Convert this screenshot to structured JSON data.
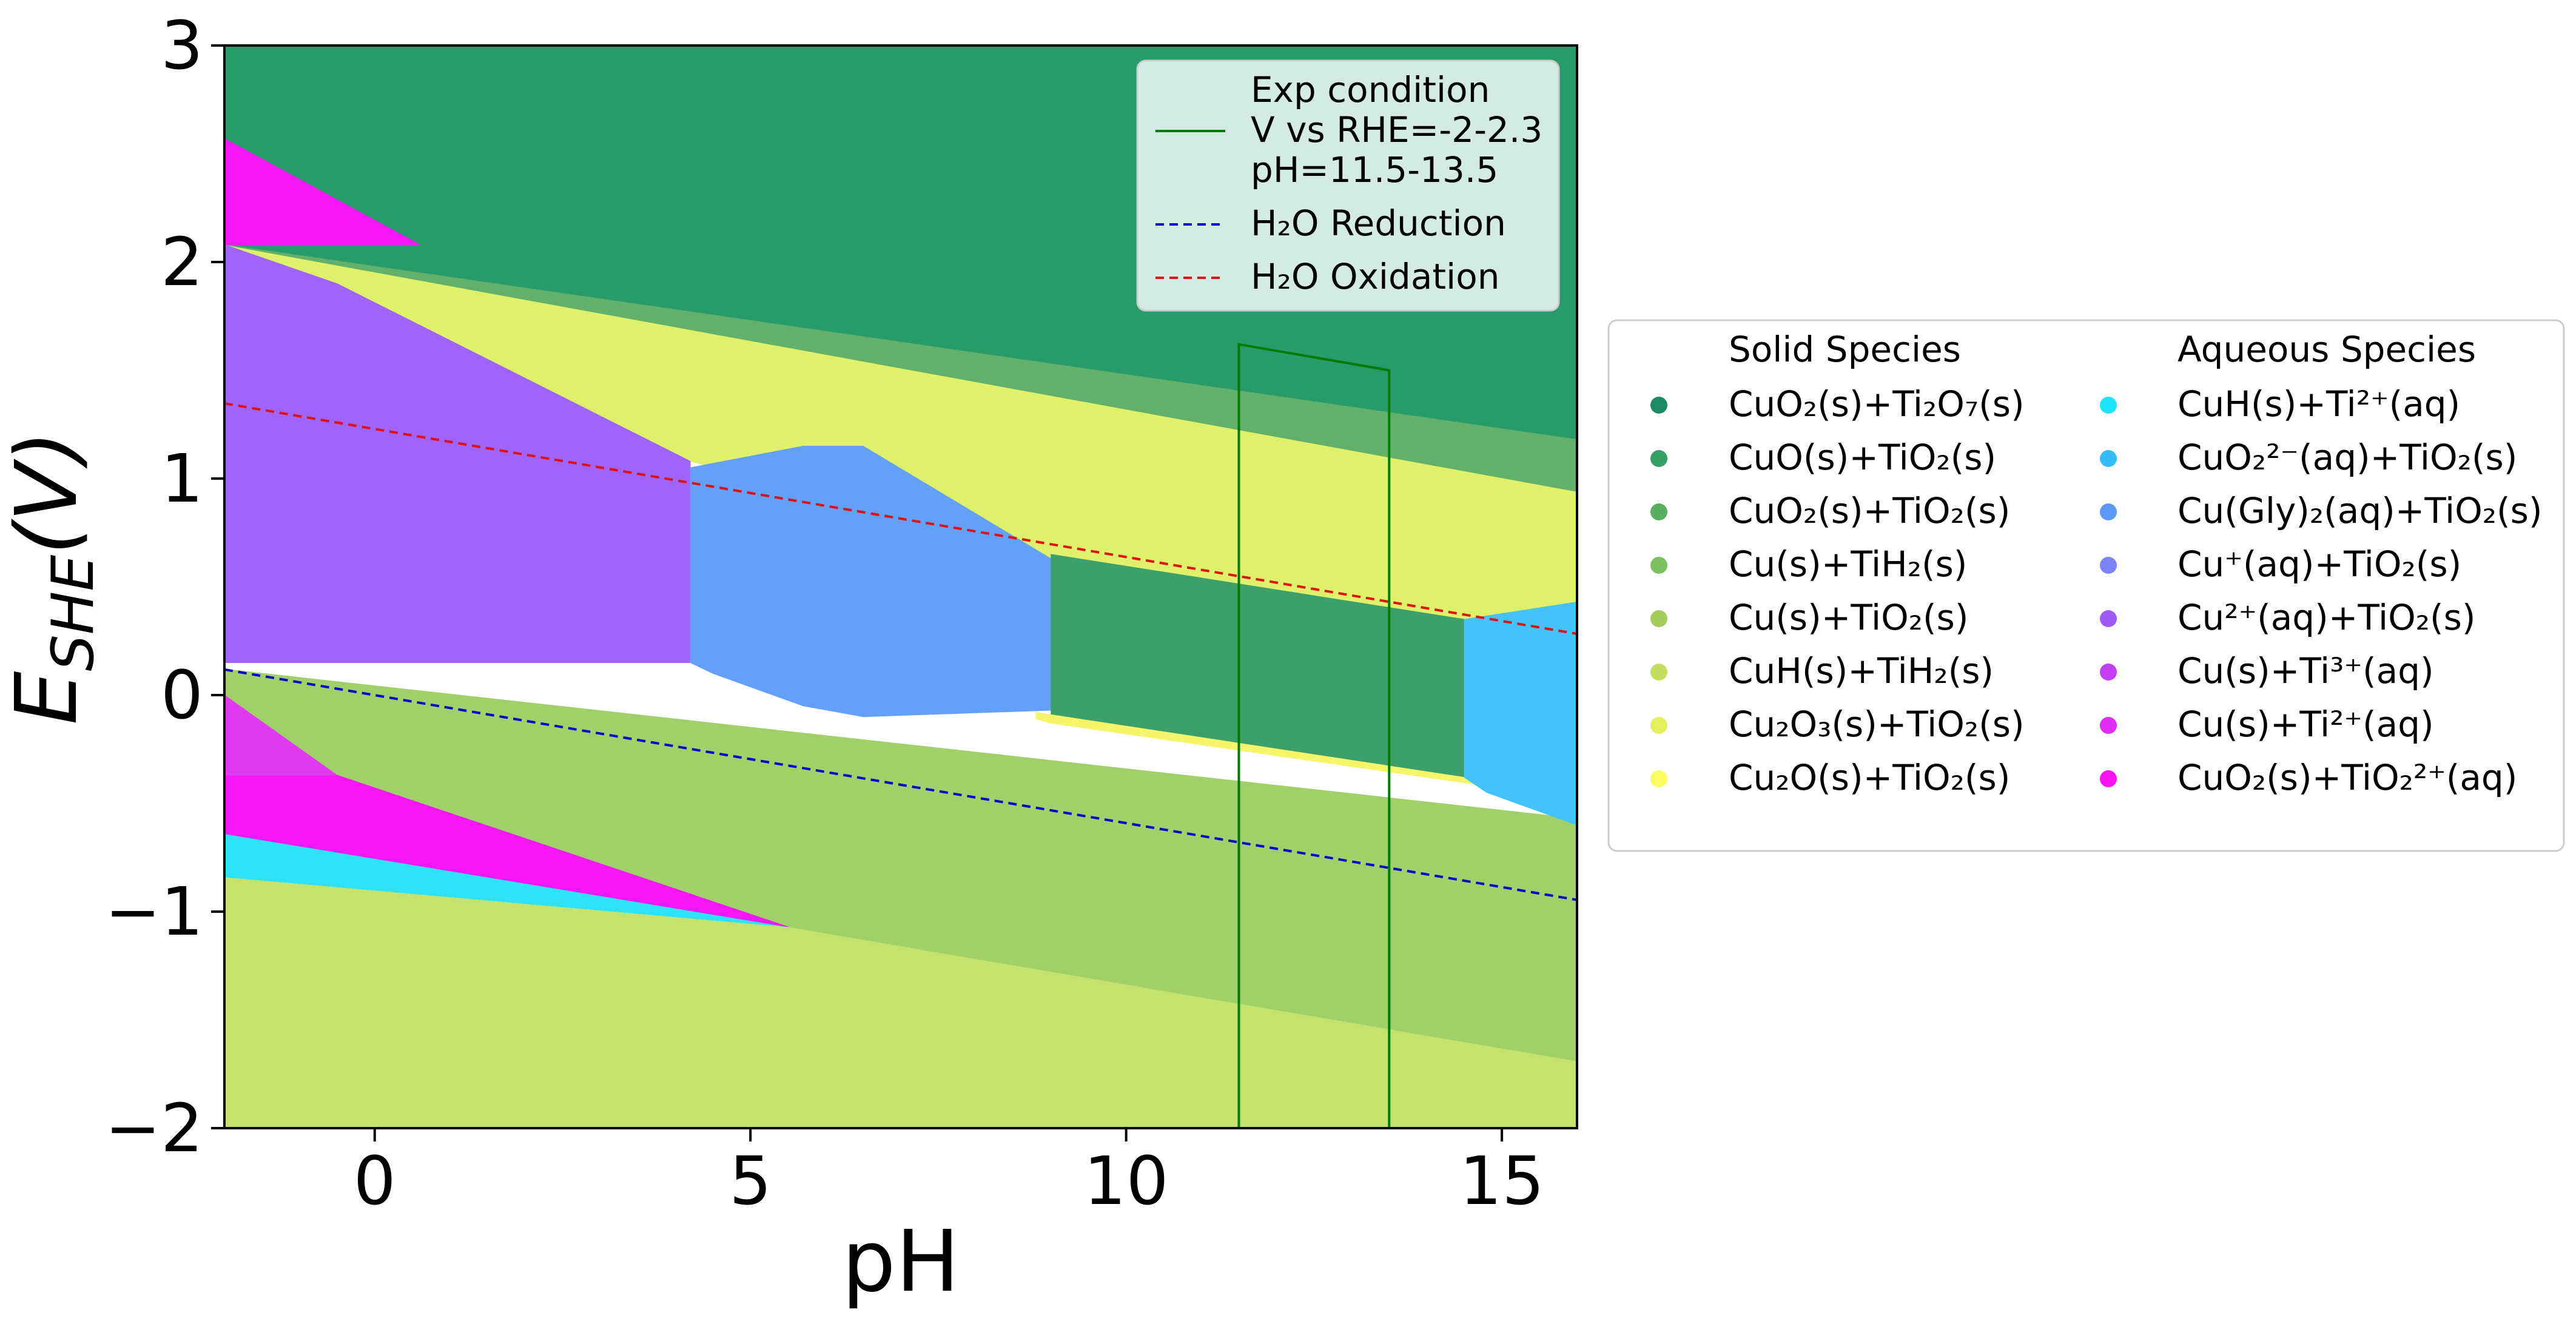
{
  "chart_data": {
    "type": "area",
    "title": "",
    "xlabel": "pH",
    "ylabel_main": "E",
    "ylabel_sub": "SHE",
    "ylabel_tail": "(V)",
    "xlim": [
      -2,
      16
    ],
    "ylim": [
      -2,
      3
    ],
    "x_ticks": [
      {
        "v": 0,
        "label": "0"
      },
      {
        "v": 5,
        "label": "5"
      },
      {
        "v": 10,
        "label": "10"
      },
      {
        "v": 15,
        "label": "15"
      }
    ],
    "y_ticks": [
      {
        "v": -2,
        "label": "−2"
      },
      {
        "v": -1,
        "label": "−1"
      },
      {
        "v": 0,
        "label": "0"
      },
      {
        "v": 1,
        "label": "1"
      },
      {
        "v": 2,
        "label": "2"
      },
      {
        "v": 3,
        "label": "3"
      }
    ],
    "grid": false,
    "regions": [
      {
        "name": "CuH(s)+TiH2(s)",
        "color": "#c5e26d",
        "points": [
          [
            -2,
            -2
          ],
          [
            16,
            -2
          ],
          [
            16,
            -1.69
          ],
          [
            5.5,
            -1.07
          ],
          [
            -2,
            -0.84
          ]
        ]
      },
      {
        "name": "Cu(s)+TiO2(s)",
        "color": "#a0d06a",
        "points": [
          [
            -2,
            0.12
          ],
          [
            16,
            -0.57
          ],
          [
            16,
            -1.69
          ],
          [
            5.5,
            -1.07
          ],
          [
            -0.5,
            -0.37
          ],
          [
            -2,
            -0.37
          ]
        ]
      },
      {
        "name": "CuH(s)+Ti2+(aq)",
        "color": "#2ee2fa",
        "points": [
          [
            -2,
            -0.64
          ],
          [
            5.5,
            -1.07
          ],
          [
            -2,
            -0.84
          ]
        ]
      },
      {
        "name": "Cu(s)+Ti2+(aq)",
        "color": "#f516f5",
        "points": [
          [
            -2,
            -0.37
          ],
          [
            -0.5,
            -0.37
          ],
          [
            5.5,
            -1.07
          ],
          [
            -2,
            -0.64
          ]
        ]
      },
      {
        "name": "Cu(s)+Ti3+(aq)",
        "color": "#e03af0",
        "points": [
          [
            -2,
            0
          ],
          [
            -0.5,
            -0.37
          ],
          [
            -2,
            -0.37
          ]
        ]
      },
      {
        "name": "Cu2O3(s)+TiO2(s)",
        "color": "#dff06a",
        "points": [
          [
            -2,
            2.08
          ],
          [
            0.5,
            2.08
          ],
          [
            16,
            1.18
          ],
          [
            16,
            0.43
          ],
          [
            14.5,
            0.35
          ],
          [
            9,
            0.63
          ],
          [
            4.2,
            1.08
          ],
          [
            -2,
            2.08
          ]
        ]
      },
      {
        "name": "CuO(s)+TiO2(s)",
        "color": "#289b6b",
        "points": [
          [
            -2,
            3
          ],
          [
            16,
            3
          ],
          [
            16,
            1.18
          ],
          [
            -2,
            2.08
          ]
        ]
      },
      {
        "name": "CuO2(s)+TiO2(s)",
        "color": "#63b06b",
        "points": [
          [
            -2,
            2.08
          ],
          [
            16,
            1.18
          ],
          [
            16,
            0.94
          ],
          [
            -2,
            2.08
          ]
        ]
      },
      {
        "name": "CuO2(s)+TiO2 2+(aq)",
        "color": "#f516f5",
        "points": [
          [
            -2,
            2.57
          ],
          [
            0.6,
            2.08
          ],
          [
            -2,
            2.08
          ]
        ]
      },
      {
        "name": "Cu2+(aq)+TiO2(s)",
        "color": "#a064fa",
        "points": [
          [
            -2,
            2.08
          ],
          [
            -0.5,
            1.9
          ],
          [
            4.2,
            1.08
          ],
          [
            4.2,
            0.15
          ],
          [
            -2,
            0.15
          ]
        ]
      },
      {
        "name": "Cu(Gly)2(aq)+TiO2(s)",
        "color": "#64a0f8",
        "points": [
          [
            4.2,
            1.05
          ],
          [
            5.7,
            1.15
          ],
          [
            6.5,
            1.15
          ],
          [
            9,
            0.63
          ],
          [
            9,
            -0.07
          ],
          [
            6.5,
            -0.1
          ],
          [
            5.7,
            -0.05
          ],
          [
            4.5,
            0.1
          ],
          [
            4.2,
            0.15
          ]
        ]
      },
      {
        "name": "CuO(s)+TiO2(s) band",
        "color": "#3d9f6a",
        "points": [
          [
            9,
            0.65
          ],
          [
            14.5,
            0.35
          ],
          [
            14.5,
            -0.38
          ],
          [
            9,
            -0.12
          ]
        ]
      },
      {
        "name": "Cu2O(s)+TiO2(s)",
        "color": "#f7f56a",
        "points": [
          [
            8.8,
            -0.08
          ],
          [
            14.5,
            -0.38
          ],
          [
            14.8,
            -0.42
          ],
          [
            9,
            -0.13
          ],
          [
            8.8,
            -0.11
          ]
        ]
      },
      {
        "name": "CuO2 2-(aq)+TiO2(s)",
        "color": "#44c2fa",
        "points": [
          [
            14.5,
            0.35
          ],
          [
            16,
            0.43
          ],
          [
            16,
            -0.6
          ],
          [
            14.8,
            -0.45
          ],
          [
            14.5,
            -0.38
          ]
        ]
      }
    ],
    "lines": [
      {
        "name": "H2O Reduction",
        "color": "#0000cc",
        "dash": true,
        "points": [
          [
            -2,
            0.118
          ],
          [
            16,
            -0.946
          ]
        ]
      },
      {
        "name": "H2O Oxidation",
        "color": "#e01010",
        "dash": true,
        "points": [
          [
            -2,
            1.347
          ],
          [
            16,
            0.283
          ]
        ]
      },
      {
        "name": "Exp condition",
        "color": "#007a00",
        "dash": false,
        "points": [
          [
            11.5,
            -2
          ],
          [
            11.5,
            1.62
          ],
          [
            13.5,
            1.5
          ],
          [
            13.5,
            -2
          ]
        ]
      }
    ],
    "legend_top": {
      "placement": "top-right",
      "entries": [
        {
          "lines": [
            "Exp condition",
            "V vs RHE=-2-2.3",
            "pH=11.5-13.5"
          ],
          "color": "#007a00",
          "dash": false
        },
        {
          "lines": [
            "H₂O Reduction"
          ],
          "color": "#0000cc",
          "dash": true
        },
        {
          "lines": [
            "H₂O Oxidation"
          ],
          "color": "#e01010",
          "dash": true
        }
      ]
    },
    "legend_side": {
      "placement": "outside-right",
      "solid_header": "Solid Species",
      "aqueous_header": "Aqueous Species",
      "solid": [
        {
          "label": "CuO₂(s)+Ti₂O₇(s)",
          "color": "#1d8a63"
        },
        {
          "label": "CuO(s)+TiO₂(s)",
          "color": "#34a065"
        },
        {
          "label": "CuO₂(s)+TiO₂(s)",
          "color": "#58ae63"
        },
        {
          "label": "Cu(s)+TiH₂(s)",
          "color": "#7cbf5e"
        },
        {
          "label": "Cu(s)+TiO₂(s)",
          "color": "#a2cd5d"
        },
        {
          "label": "CuH(s)+TiH₂(s)",
          "color": "#c4df5e"
        },
        {
          "label": "Cu₂O₃(s)+TiO₂(s)",
          "color": "#e3ef5c"
        },
        {
          "label": "Cu₂O(s)+TiO₂(s)",
          "color": "#fcfc62"
        }
      ],
      "aqueous": [
        {
          "label": "CuH(s)+Ti²⁺(aq)",
          "color": "#1ee6fa"
        },
        {
          "label": "CuO₂²⁻(aq)+TiO₂(s)",
          "color": "#36bdf8"
        },
        {
          "label": "Cu(Gly)₂(aq)+TiO₂(s)",
          "color": "#5e98f6"
        },
        {
          "label": "Cu⁺(aq)+TiO₂(s)",
          "color": "#7c84f6"
        },
        {
          "label": "Cu²⁺(aq)+TiO₂(s)",
          "color": "#a05af4"
        },
        {
          "label": "Cu(s)+Ti³⁺(aq)",
          "color": "#c43ef2"
        },
        {
          "label": "Cu(s)+Ti²⁺(aq)",
          "color": "#e02bf2"
        },
        {
          "label": "CuO₂(s)+TiO₂²⁺(aq)",
          "color": "#f814ef"
        }
      ]
    }
  }
}
